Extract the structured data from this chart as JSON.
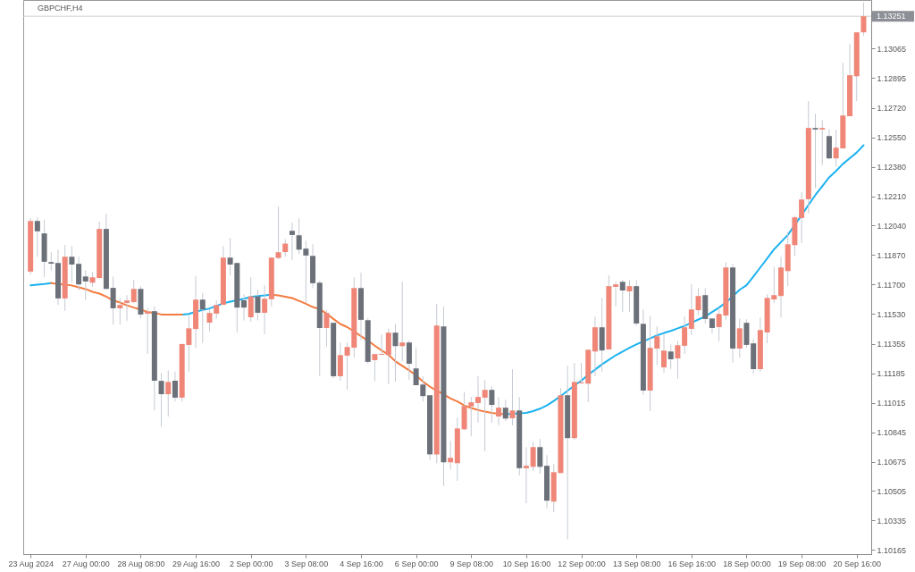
{
  "chart_data": {
    "type": "candlestick",
    "title": "GBPCHF,H4",
    "categories": [
      "23 Aug 2024",
      null,
      null,
      null,
      null,
      null,
      null,
      null,
      "27 Aug 00:00",
      null,
      null,
      null,
      null,
      null,
      null,
      null,
      "28 Aug 08:00",
      null,
      null,
      null,
      null,
      null,
      null,
      null,
      "29 Aug 16:00",
      null,
      null,
      null,
      null,
      null,
      null,
      null,
      "2 Sep 00:00",
      null,
      null,
      null,
      null,
      null,
      null,
      null,
      "3 Sep 08:00",
      null,
      null,
      null,
      null,
      null,
      null,
      null,
      "4 Sep 16:00",
      null,
      null,
      null,
      null,
      null,
      null,
      null,
      "6 Sep 00:00",
      null,
      null,
      null,
      null,
      null,
      null,
      null,
      "9 Sep 08:00",
      null,
      null,
      null,
      null,
      null,
      null,
      null,
      "10 Sep 16:00",
      null,
      null,
      null,
      null,
      null,
      null,
      null,
      "12 Sep 00:00",
      null,
      null,
      null,
      null,
      null,
      null,
      null,
      "13 Sep 08:00",
      null,
      null,
      null,
      null,
      null,
      null,
      null,
      "16 Sep 16:00",
      null,
      null,
      null,
      null,
      null,
      null,
      null,
      "18 Sep 00:00",
      null,
      null,
      null,
      null,
      null,
      null,
      null,
      "19 Sep 08:00",
      null,
      null,
      null,
      null,
      null,
      null,
      null,
      "20 Sep 16:00",
      null
    ],
    "ohlc": [
      [
        1.11774,
        1.12082,
        1.11757,
        1.12067
      ],
      [
        1.12067,
        1.12088,
        1.1186,
        1.12007
      ],
      [
        1.11995,
        1.12073,
        1.11742,
        1.11831
      ],
      [
        1.11829,
        1.11887,
        1.11781,
        1.1182
      ],
      [
        1.11824,
        1.11901,
        1.11582,
        1.11619
      ],
      [
        1.11619,
        1.11927,
        1.11547,
        1.1186
      ],
      [
        1.1186,
        1.11922,
        1.11711,
        1.11815
      ],
      [
        1.11819,
        1.1186,
        1.11665,
        1.117
      ],
      [
        1.11746,
        1.11781,
        1.11608,
        1.11717
      ],
      [
        1.1171,
        1.11772,
        1.11686,
        1.11741
      ],
      [
        1.11737,
        1.12062,
        1.11736,
        1.12021
      ],
      [
        1.12021,
        1.12108,
        1.11674,
        1.11674
      ],
      [
        1.1168,
        1.11746,
        1.11468,
        1.11562
      ],
      [
        1.11562,
        1.11621,
        1.11468,
        1.11581
      ],
      [
        1.11593,
        1.11638,
        1.1149,
        1.11607
      ],
      [
        1.11598,
        1.11726,
        1.11591,
        1.11674
      ],
      [
        1.11674,
        1.1169,
        1.11505,
        1.11526
      ],
      [
        1.11531,
        1.11566,
        1.11298,
        1.11543
      ],
      [
        1.11545,
        1.11574,
        1.10973,
        1.11143
      ],
      [
        1.11142,
        1.11188,
        1.10876,
        1.11065
      ],
      [
        1.11065,
        1.11203,
        1.10936,
        1.11136
      ],
      [
        1.11143,
        1.11195,
        1.11023,
        1.11045
      ],
      [
        1.11045,
        1.11358,
        1.11023,
        1.11355
      ],
      [
        1.1135,
        1.11523,
        1.11195,
        1.11446
      ],
      [
        1.11442,
        1.1175,
        1.11333,
        1.11612
      ],
      [
        1.11612,
        1.11652,
        1.11362,
        1.11555
      ],
      [
        1.11479,
        1.11557,
        1.11427,
        1.11535
      ],
      [
        1.11531,
        1.11608,
        1.11502,
        1.11581
      ],
      [
        1.11582,
        1.11922,
        1.11581,
        1.11855
      ],
      [
        1.11855,
        1.11969,
        1.11752,
        1.11815
      ],
      [
        1.11824,
        1.11824,
        1.11422,
        1.11566
      ],
      [
        1.11608,
        1.11643,
        1.11492,
        1.11566
      ],
      [
        1.1151,
        1.11742,
        1.11484,
        1.11631
      ],
      [
        1.11631,
        1.11669,
        1.11492,
        1.11536
      ],
      [
        1.11536,
        1.11695,
        1.11412,
        1.11617
      ],
      [
        1.11614,
        1.11855,
        1.11571,
        1.11855
      ],
      [
        1.11853,
        1.1215,
        1.11846,
        1.11886
      ],
      [
        1.11887,
        1.11962,
        1.1186,
        1.11936
      ],
      [
        1.1201,
        1.12057,
        1.1184,
        1.11986
      ],
      [
        1.11984,
        1.12082,
        1.11876,
        1.11901
      ],
      [
        1.11907,
        1.11953,
        1.11591,
        1.11867
      ],
      [
        1.11865,
        1.11932,
        1.11678,
        1.11707
      ],
      [
        1.1171,
        1.11721,
        1.11169,
        1.11448
      ],
      [
        1.11448,
        1.11551,
        1.11341,
        1.11535
      ],
      [
        1.11478,
        1.11478,
        1.11157,
        1.11169
      ],
      [
        1.11169,
        1.11364,
        1.11143,
        1.11291
      ],
      [
        1.11288,
        1.11364,
        1.11091,
        1.11338
      ],
      [
        1.11334,
        1.11741,
        1.11277,
        1.11679
      ],
      [
        1.11679,
        1.11767,
        1.11379,
        1.11495
      ],
      [
        1.11493,
        1.11505,
        1.11243,
        1.11252
      ],
      [
        1.11262,
        1.11297,
        1.1114,
        1.11297
      ],
      [
        1.11293,
        1.1141,
        1.11293,
        1.11298
      ],
      [
        1.11291,
        1.11445,
        1.11122,
        1.11421
      ],
      [
        1.11421,
        1.11472,
        1.11138,
        1.11343
      ],
      [
        1.11343,
        1.11715,
        1.11255,
        1.11364
      ],
      [
        1.11364,
        1.11376,
        1.11147,
        1.11241
      ],
      [
        1.11214,
        1.11333,
        1.11116,
        1.11117
      ],
      [
        1.11121,
        1.11168,
        1.11023,
        1.11054
      ],
      [
        1.11059,
        1.11059,
        1.10686,
        1.10717
      ],
      [
        1.10717,
        1.11586,
        1.10666,
        1.11462
      ],
      [
        1.11457,
        1.11571,
        1.10535,
        1.10671
      ],
      [
        1.10671,
        1.10795,
        1.1063,
        1.10697
      ],
      [
        1.10666,
        1.10931,
        1.10564,
        1.10867
      ],
      [
        1.10862,
        1.11079,
        1.10857,
        1.10997
      ],
      [
        1.10994,
        1.11049,
        1.10821,
        1.11018
      ],
      [
        1.11014,
        1.11168,
        1.109,
        1.11049
      ],
      [
        1.11045,
        1.11147,
        1.10735,
        1.1109
      ],
      [
        1.1109,
        1.11111,
        1.109,
        1.11003
      ],
      [
        1.10936,
        1.11049,
        1.10885,
        1.10987
      ],
      [
        1.10987,
        1.11033,
        1.1091,
        1.10924
      ],
      [
        1.10926,
        1.11209,
        1.10885,
        1.10971
      ],
      [
        1.10971,
        1.11049,
        1.10595,
        1.10637
      ],
      [
        1.10637,
        1.10759,
        1.10435,
        1.10651
      ],
      [
        1.10645,
        1.1079,
        1.10621,
        1.10759
      ],
      [
        1.10759,
        1.10806,
        1.10605,
        1.10645
      ],
      [
        1.10651,
        1.10712,
        1.10404,
        1.10449
      ],
      [
        1.10444,
        1.10661,
        1.10383,
        1.10614
      ],
      [
        1.10609,
        1.111,
        1.10609,
        1.11059
      ],
      [
        1.11059,
        1.11229,
        1.10225,
        1.10811
      ],
      [
        1.10811,
        1.11245,
        1.108,
        1.11136
      ],
      [
        1.11128,
        1.11245,
        1.11126,
        1.11134
      ],
      [
        1.11126,
        1.11322,
        1.11019,
        1.11322
      ],
      [
        1.11312,
        1.11514,
        1.11169,
        1.11452
      ],
      [
        1.11452,
        1.11622,
        1.11195,
        1.11318
      ],
      [
        1.11324,
        1.11752,
        1.11322,
        1.1169
      ],
      [
        1.11686,
        1.11715,
        1.11572,
        1.117
      ],
      [
        1.11715,
        1.11726,
        1.11541,
        1.11665
      ],
      [
        1.1166,
        1.11726,
        1.11541,
        1.1169
      ],
      [
        1.1169,
        1.11726,
        1.11462,
        1.11474
      ],
      [
        1.11472,
        1.11555,
        1.1106,
        1.11086
      ],
      [
        1.11086,
        1.11519,
        1.10967,
        1.11333
      ],
      [
        1.11329,
        1.11457,
        1.11236,
        1.114
      ],
      [
        1.1122,
        1.11415,
        1.11189,
        1.11317
      ],
      [
        1.11312,
        1.11353,
        1.1121,
        1.11267
      ],
      [
        1.11272,
        1.11374,
        1.11154,
        1.11348
      ],
      [
        1.11345,
        1.11514,
        1.11298,
        1.11452
      ],
      [
        1.11443,
        1.117,
        1.11407,
        1.11555
      ],
      [
        1.11551,
        1.11679,
        1.11522,
        1.11633
      ],
      [
        1.11638,
        1.11679,
        1.11474,
        1.115
      ],
      [
        1.11503,
        1.11503,
        1.11417,
        1.11448
      ],
      [
        1.11453,
        1.11566,
        1.1137,
        1.11529
      ],
      [
        1.1152,
        1.11829,
        1.11495,
        1.11798
      ],
      [
        1.11798,
        1.11819,
        1.11246,
        1.11329
      ],
      [
        1.11329,
        1.11502,
        1.11277,
        1.11446
      ],
      [
        1.11478,
        1.11498,
        1.11333,
        1.1135
      ],
      [
        1.11359,
        1.11384,
        1.11184,
        1.1121
      ],
      [
        1.1121,
        1.11509,
        1.11195,
        1.11436
      ],
      [
        1.11422,
        1.11643,
        1.1136,
        1.11622
      ],
      [
        1.11613,
        1.11803,
        1.11591,
        1.11638
      ],
      [
        1.11633,
        1.1186,
        1.11509,
        1.11798
      ],
      [
        1.11777,
        1.12005,
        1.11691,
        1.11932
      ],
      [
        1.11927,
        1.12098,
        1.11864,
        1.12088
      ],
      [
        1.12084,
        1.12233,
        1.11939,
        1.12191
      ],
      [
        1.12193,
        1.1276,
        1.12112,
        1.12605
      ],
      [
        1.12605,
        1.12687,
        1.12256,
        1.12596
      ],
      [
        1.12596,
        1.12651,
        1.12391,
        1.12605
      ],
      [
        1.12558,
        1.12599,
        1.12424,
        1.12429
      ],
      [
        1.12429,
        1.12594,
        1.12381,
        1.12491
      ],
      [
        1.12487,
        1.12982,
        1.12486,
        1.12677
      ],
      [
        1.12673,
        1.13091,
        1.12672,
        1.1291
      ],
      [
        1.12904,
        1.13158,
        1.1276,
        1.13158
      ],
      [
        1.13158,
        1.1333,
        1.13139,
        1.13251
      ]
    ],
    "colors": [
      "#ef8677",
      "#6b7079",
      "#6b7079",
      "#6b7079",
      "#6b7079",
      "#ef8677",
      "#6b7079",
      "#6b7079",
      "#6b7079",
      "#ef8677",
      "#ef8677",
      "#6b7079",
      "#6b7079",
      "#ef8677",
      "#ef8677",
      "#ef8677",
      "#6b7079",
      "#ef8677",
      "#6b7079",
      "#6b7079",
      "#ef8677",
      "#6b7079",
      "#ef8677",
      "#ef8677",
      "#ef8677",
      "#6b7079",
      "#ef8677",
      "#ef8677",
      "#ef8677",
      "#6b7079",
      "#6b7079",
      "#6b7079",
      "#ef8677",
      "#6b7079",
      "#ef8677",
      "#ef8677",
      "#ef8677",
      "#ef8677",
      "#6b7079",
      "#6b7079",
      "#6b7079",
      "#6b7079",
      "#6b7079",
      "#ef8677",
      "#6b7079",
      "#ef8677",
      "#ef8677",
      "#ef8677",
      "#6b7079",
      "#6b7079",
      "#ef8677",
      "#ef8677",
      "#ef8677",
      "#6b7079",
      "#ef8677",
      "#6b7079",
      "#6b7079",
      "#6b7079",
      "#6b7079",
      "#ef8677",
      "#6b7079",
      "#ef8677",
      "#ef8677",
      "#ef8677",
      "#ef8677",
      "#ef8677",
      "#ef8677",
      "#6b7079",
      "#ef8677",
      "#6b7079",
      "#ef8677",
      "#6b7079",
      "#ef8677",
      "#ef8677",
      "#6b7079",
      "#6b7079",
      "#ef8677",
      "#ef8677",
      "#6b7079",
      "#ef8677",
      "#ef8677",
      "#ef8677",
      "#ef8677",
      "#6b7079",
      "#ef8677",
      "#ef8677",
      "#6b7079",
      "#ef8677",
      "#6b7079",
      "#6b7079",
      "#ef8677",
      "#ef8677",
      "#ef8677",
      "#6b7079",
      "#ef8677",
      "#ef8677",
      "#ef8677",
      "#ef8677",
      "#6b7079",
      "#6b7079",
      "#ef8677",
      "#ef8677",
      "#6b7079",
      "#ef8677",
      "#6b7079",
      "#6b7079",
      "#ef8677",
      "#ef8677",
      "#ef8677",
      "#ef8677",
      "#ef8677",
      "#ef8677",
      "#ef8677",
      "#ef8677",
      "#6b7079",
      "#ef8677",
      "#6b7079",
      "#ef8677",
      "#ef8677",
      "#ef8677",
      "#ef8677",
      "#ef8677"
    ],
    "series": [
      {
        "type": "line",
        "color": "#1cb2f0",
        "values": [
          1.11695,
          1.11699,
          1.11702,
          1.11707,
          null,
          null,
          null,
          null,
          null,
          null,
          null,
          null,
          null,
          null,
          null,
          null,
          null,
          null,
          null,
          null,
          null,
          null,
          1.11526,
          1.11529,
          1.11542,
          1.11552,
          1.11561,
          1.11575,
          1.11591,
          1.116,
          1.11608,
          1.11617,
          1.11627,
          1.11633,
          1.11636,
          1.11641,
          null,
          null,
          null,
          null,
          null,
          null,
          null,
          null,
          null,
          null,
          null,
          null,
          null,
          null,
          null,
          null,
          null,
          null,
          null,
          null,
          null,
          null,
          null,
          null,
          null,
          null,
          null,
          null,
          null,
          null,
          null,
          null,
          null,
          1.1095,
          1.1095,
          1.10955,
          1.10957,
          1.10967,
          1.10981,
          1.11,
          1.11026,
          1.11054,
          1.11085,
          1.11116,
          1.11143,
          1.11178,
          1.11207,
          1.11238,
          1.11264,
          1.1129,
          1.11311,
          1.11333,
          1.11353,
          1.11371,
          1.11388,
          1.11405,
          1.11419,
          1.11431,
          1.11446,
          1.1146,
          1.11478,
          1.11497,
          1.11514,
          1.1154,
          1.11566,
          1.11595,
          1.11631,
          1.11669,
          1.11695,
          1.11746,
          1.11798,
          1.1185,
          1.11903,
          1.11945,
          1.11986,
          1.12043,
          1.12101,
          1.1216,
          1.12217,
          1.12268,
          1.12319,
          1.12356,
          1.12397,
          1.1243,
          1.12463,
          1.12505
        ]
      },
      {
        "type": "line",
        "color": "#f57b40",
        "values": [
          null,
          null,
          null,
          1.11707,
          1.11702,
          1.11699,
          1.11694,
          1.11683,
          1.11673,
          1.11657,
          1.11647,
          1.11629,
          1.11608,
          1.11595,
          1.11579,
          1.11566,
          1.11555,
          1.1154,
          1.11536,
          1.11526,
          1.11526,
          1.11526,
          1.11526,
          null,
          null,
          null,
          null,
          null,
          null,
          null,
          null,
          null,
          null,
          null,
          null,
          1.11641,
          1.11636,
          1.11629,
          1.11621,
          1.11605,
          1.11588,
          1.11569,
          1.11557,
          1.11531,
          1.115,
          1.11471,
          1.11453,
          1.11427,
          1.11401,
          1.11375,
          1.11346,
          1.11318,
          1.11293,
          1.11255,
          1.11229,
          1.11203,
          1.11174,
          1.11138,
          1.11109,
          1.11086,
          1.11065,
          1.1104,
          1.11023,
          1.11,
          1.10985,
          1.10974,
          1.10964,
          1.10957,
          1.10952,
          1.1095,
          null,
          null,
          null,
          null,
          null,
          null,
          null,
          null,
          null,
          null,
          null,
          null,
          null,
          null,
          null,
          null,
          null,
          null,
          null,
          null,
          null,
          null,
          null,
          null,
          null,
          null,
          null,
          null,
          null,
          null,
          null,
          null,
          null,
          null,
          null,
          null,
          null,
          null,
          null,
          null,
          null,
          null,
          null,
          null,
          null,
          null,
          null,
          null,
          null,
          null,
          null,
          null
        ]
      }
    ],
    "ylim": [
      1.1014,
      1.13345
    ],
    "yticks": [
      1.10165,
      1.10335,
      1.10505,
      1.10675,
      1.10845,
      1.11015,
      1.11185,
      1.11355,
      {
        "value": 1.1153,
        "label": "1.11530"
      },
      {
        "value": 1.117,
        "label": "1.11700"
      },
      {
        "value": 1.1187,
        "label": "1.11870"
      },
      {
        "value": 1.1204,
        "label": "1.12040"
      },
      {
        "value": 1.1221,
        "label": "1.12210"
      },
      {
        "value": 1.1238,
        "label": "1.12380"
      },
      {
        "value": 1.1255,
        "label": "1.12550"
      },
      {
        "value": 1.1272,
        "label": "1.12720"
      },
      1.12895,
      1.13065
    ],
    "ref_lines": [
      {
        "axis": "y",
        "value": 1.13251,
        "label": "1.13251",
        "color": "#cfcfcf"
      }
    ],
    "grid": false
  }
}
